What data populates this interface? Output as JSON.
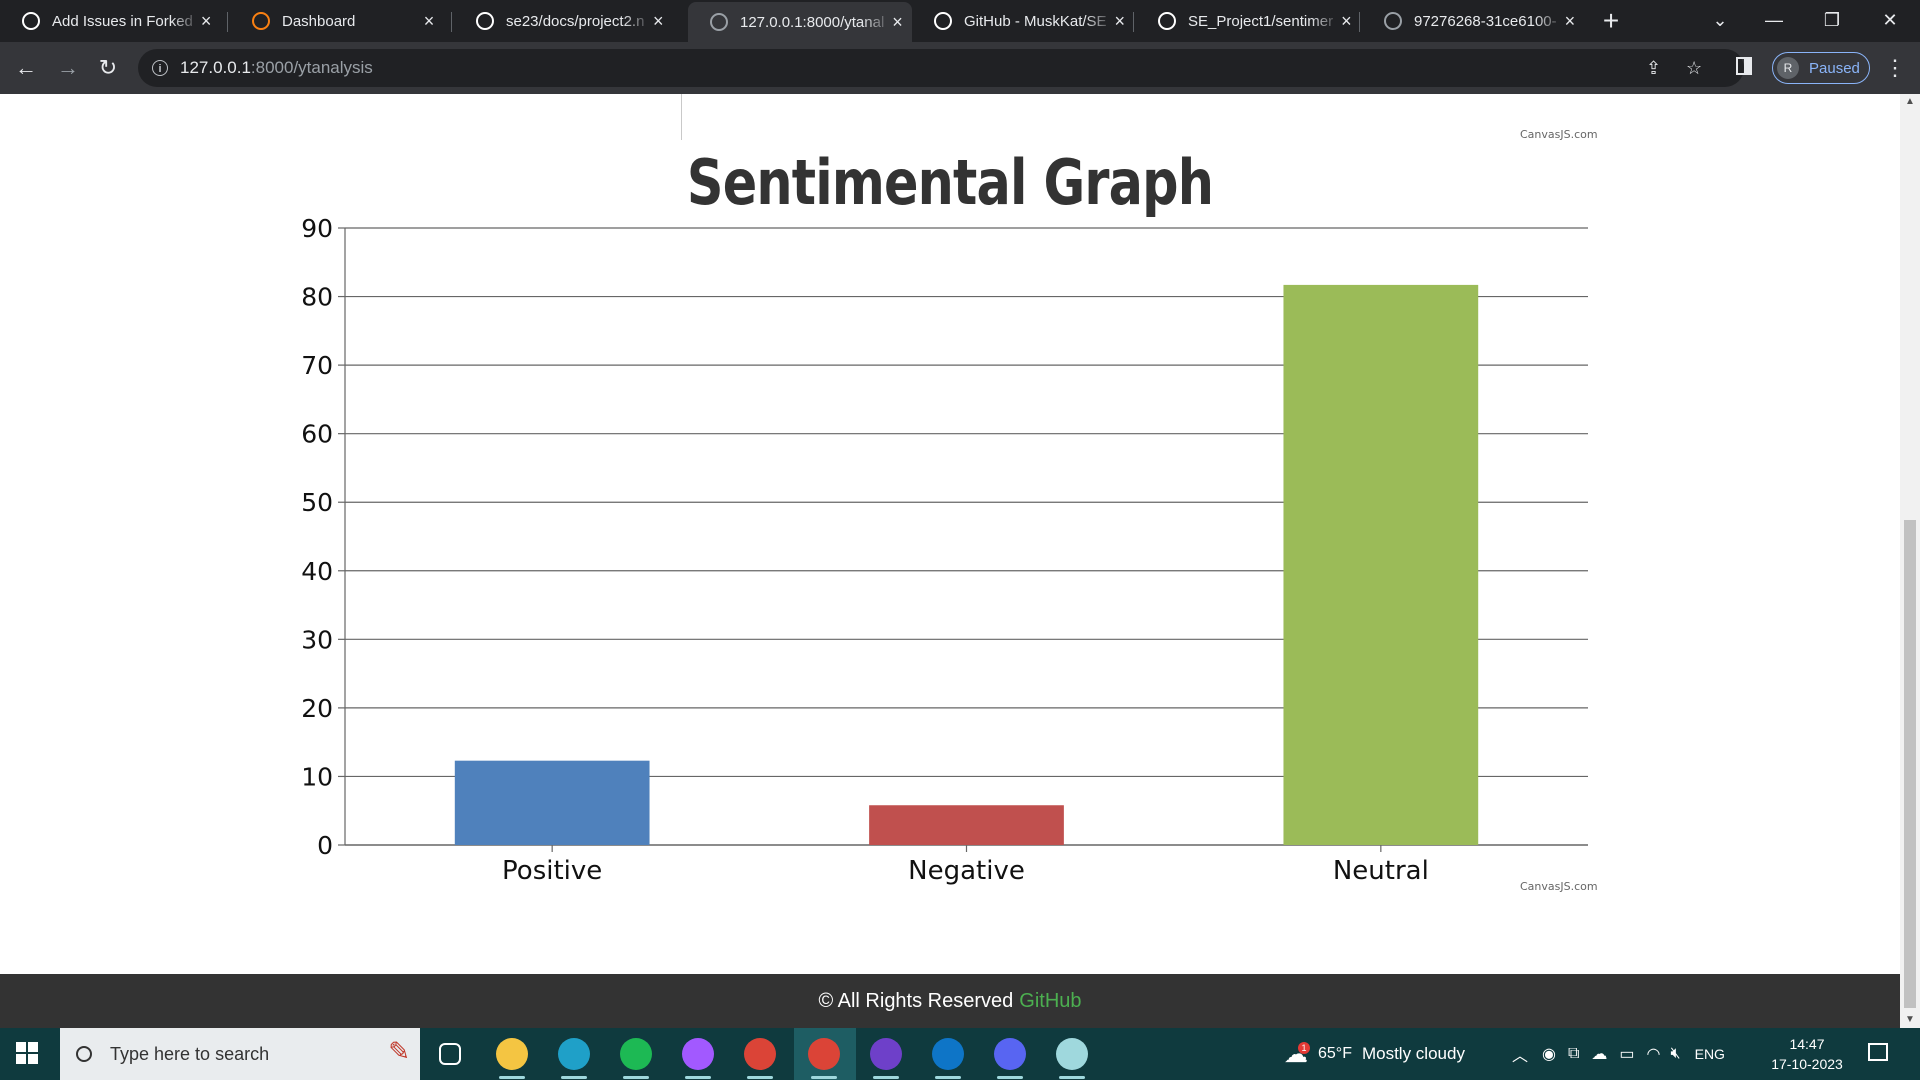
{
  "browser": {
    "tabs": [
      {
        "title": "Add Issues in Forked",
        "favicon": "openai-icon",
        "fav_color": "#ffffff",
        "active": false
      },
      {
        "title": "Dashboard",
        "favicon": "moodle-icon",
        "fav_color": "#f98012",
        "active": false
      },
      {
        "title": "se23/docs/project2.n",
        "favicon": "github-icon",
        "fav_color": "#ffffff",
        "active": false
      },
      {
        "title": "127.0.0.1:8000/ytanal",
        "favicon": "globe-icon",
        "fav_color": "#9aa0a6",
        "active": true
      },
      {
        "title": "GitHub - MuskKat/SE",
        "favicon": "github-icon",
        "fav_color": "#ffffff",
        "active": false
      },
      {
        "title": "SE_Project1/sentimer",
        "favicon": "github-icon",
        "fav_color": "#ffffff",
        "active": false
      },
      {
        "title": "97276268-31ce6100-",
        "favicon": "globe-icon",
        "fav_color": "#9aa0a6",
        "active": false
      }
    ],
    "url_host": "127.0.0.1",
    "url_rest": ":8000/ytanalysis",
    "profile_initial": "R",
    "profile_label": "Paused"
  },
  "page": {
    "credit_text": "CanvasJS.com",
    "footer_text": "© All Rights Reserved",
    "footer_link": "GitHub",
    "footer_link_color": "#4caf50"
  },
  "chart_data": {
    "type": "bar",
    "title": "Sentimental Graph",
    "categories": [
      "Positive",
      "Negative",
      "Neutral"
    ],
    "values": [
      12.3,
      5.8,
      81.7
    ],
    "colors": [
      "#4f81bc",
      "#c0504e",
      "#9bbb58"
    ],
    "ylim": [
      0,
      90
    ],
    "yticks": [
      0,
      10,
      20,
      30,
      40,
      50,
      60,
      70,
      80,
      90
    ],
    "grid": true,
    "xlabel": "",
    "ylabel": ""
  },
  "taskbar": {
    "search_placeholder": "Type here to search",
    "apps": [
      {
        "name": "task-view-icon",
        "color": "#0f3a3e"
      },
      {
        "name": "file-explorer-icon",
        "color": "#f4c542"
      },
      {
        "name": "edge-icon",
        "color": "#1fa0c8"
      },
      {
        "name": "spotify-icon",
        "color": "#1db954"
      },
      {
        "name": "figma-icon",
        "color": "#a259ff"
      },
      {
        "name": "chrome-icon",
        "color": "#db4437"
      },
      {
        "name": "chrome-profile-icon",
        "color": "#db4437"
      },
      {
        "name": "github-desktop-icon",
        "color": "#6e40c9"
      },
      {
        "name": "vscode-icon",
        "color": "#0e75c7"
      },
      {
        "name": "discord-icon",
        "color": "#5865f2"
      },
      {
        "name": "notes-app-icon",
        "color": "#9fd8dd"
      }
    ],
    "weather_temp": "65°F",
    "weather_desc": "Mostly cloudy",
    "weather_badge": "1",
    "lang": "ENG",
    "time": "14:47",
    "date": "17-10-2023"
  }
}
